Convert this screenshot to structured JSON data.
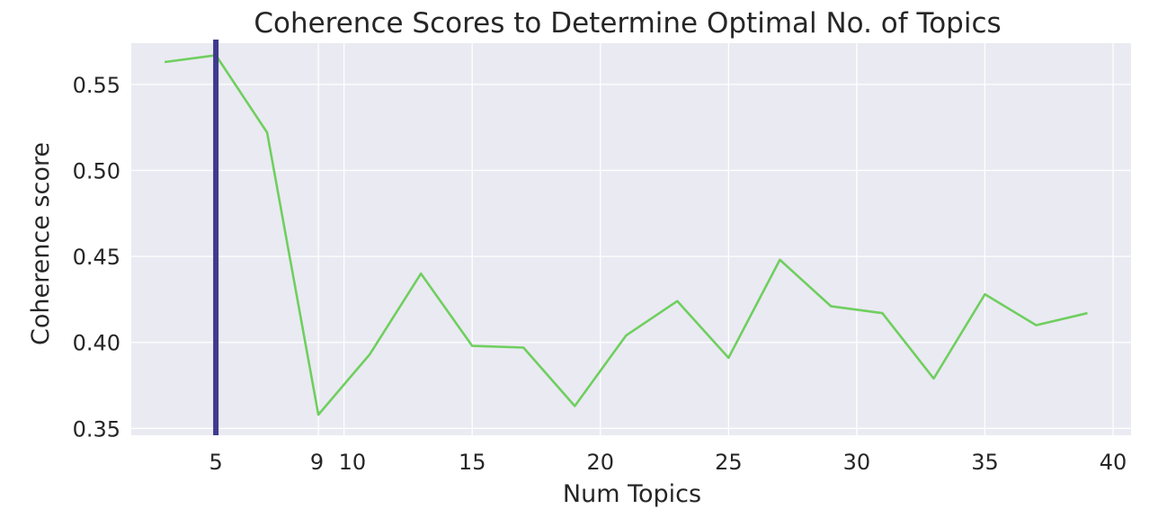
{
  "chart_data": {
    "type": "line",
    "title": "Coherence Scores to Determine Optimal No. of Topics",
    "xlabel": "Num Topics",
    "ylabel": "Coherence score",
    "xlim": [
      1.7,
      40.7
    ],
    "ylim": [
      0.346,
      0.574
    ],
    "xticks": [
      5,
      9,
      10,
      15,
      20,
      25,
      30,
      35,
      40
    ],
    "yticks": [
      0.35,
      0.4,
      0.45,
      0.5,
      0.55
    ],
    "ytick_labels": [
      "0.35",
      "0.40",
      "0.45",
      "0.50",
      "0.55"
    ],
    "grid": true,
    "series": [
      {
        "color": "#6fcf5f",
        "x": [
          3,
          5,
          7,
          9,
          11,
          13,
          15,
          17,
          19,
          21,
          23,
          25,
          27,
          29,
          31,
          33,
          35,
          37,
          39
        ],
        "y": [
          0.563,
          0.567,
          0.522,
          0.358,
          0.393,
          0.44,
          0.398,
          0.397,
          0.363,
          0.404,
          0.424,
          0.391,
          0.448,
          0.421,
          0.417,
          0.379,
          0.428,
          0.41,
          0.417
        ]
      }
    ],
    "vline": {
      "x": 5,
      "color": "#3f3a8c"
    },
    "colors": {
      "plot_bg": "#eaeaf2",
      "grid": "#ffffff",
      "text": "#262626"
    }
  }
}
